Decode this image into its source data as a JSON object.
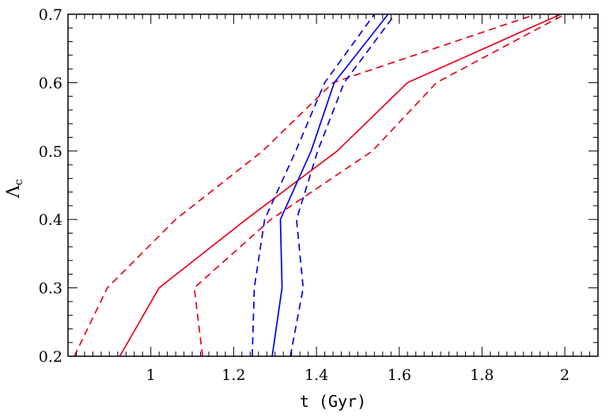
{
  "chart_data": {
    "type": "line",
    "xlabel": "t (Gyr)",
    "ylabel": "Λ",
    "ylabel_subscript": "c",
    "xlim": [
      0.8,
      2.08
    ],
    "ylim": [
      0.2,
      0.7
    ],
    "x_major_ticks": [
      1,
      1.2,
      1.4,
      1.6,
      1.8,
      2
    ],
    "x_minor_step": 0.02,
    "y_major_ticks": [
      0.2,
      0.3,
      0.4,
      0.5,
      0.6,
      0.7
    ],
    "y_minor_step": 0.02,
    "x_tick_labels": [
      "1",
      "1.2",
      "1.4",
      "1.6",
      "1.8",
      "2"
    ],
    "y_tick_labels": [
      "0.2",
      "0.3",
      "0.4",
      "0.5",
      "0.6",
      "0.7"
    ],
    "grid": false,
    "legend": "none",
    "series": [
      {
        "color": "#e8001c",
        "style": "solid",
        "x": [
          0.925,
          1.02,
          1.23,
          1.45,
          1.62,
          1.99
        ],
        "y": [
          0.2,
          0.3,
          0.4,
          0.5,
          0.6,
          0.7
        ]
      },
      {
        "color": "#e8001c",
        "style": "dashed",
        "x": [
          0.815,
          0.895,
          1.06,
          1.27,
          1.44,
          1.93
        ],
        "y": [
          0.2,
          0.3,
          0.4,
          0.5,
          0.6,
          0.7
        ]
      },
      {
        "color": "#e8001c",
        "style": "dashed",
        "x": [
          1.125,
          1.105,
          1.29,
          1.535,
          1.69,
          2.0
        ],
        "y": [
          0.2,
          0.3,
          0.4,
          0.5,
          0.6,
          0.7
        ]
      },
      {
        "color": "#0000e0",
        "style": "solid",
        "x": [
          1.293,
          1.317,
          1.313,
          1.387,
          1.443,
          1.573
        ],
        "y": [
          0.2,
          0.3,
          0.4,
          0.5,
          0.6,
          0.7
        ]
      },
      {
        "color": "#0000e0",
        "style": "dashed",
        "x": [
          1.245,
          1.25,
          1.275,
          1.35,
          1.42,
          1.54
        ],
        "y": [
          0.2,
          0.3,
          0.4,
          0.5,
          0.6,
          0.7
        ]
      },
      {
        "color": "#0000e0",
        "style": "dashed",
        "x": [
          1.337,
          1.368,
          1.352,
          1.403,
          1.467,
          1.59
        ],
        "y": [
          0.2,
          0.3,
          0.4,
          0.5,
          0.6,
          0.7
        ]
      }
    ]
  }
}
